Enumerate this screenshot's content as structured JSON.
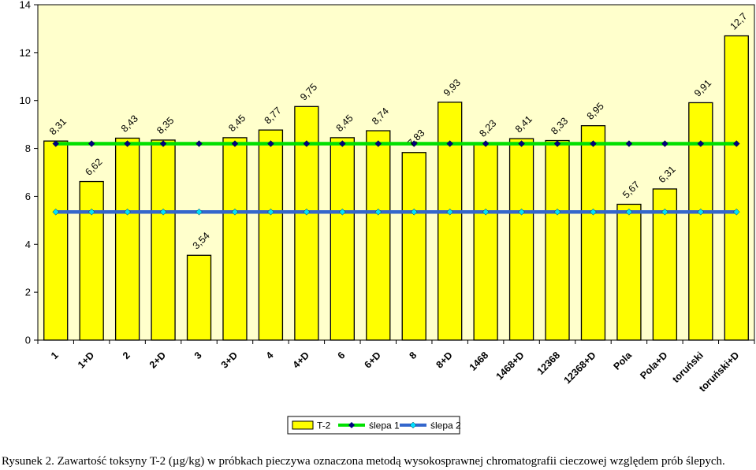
{
  "chart_data": {
    "type": "bar",
    "categories": [
      "1",
      "1+D",
      "2",
      "2+D",
      "3",
      "3+D",
      "4",
      "4+D",
      "6",
      "6+D",
      "8",
      "8+D",
      "1468",
      "1468+D",
      "12368",
      "12368+D",
      "Pola",
      "Pola+D",
      "toruński",
      "toruński+D"
    ],
    "series": [
      {
        "name": "T-2",
        "type": "bar",
        "color": "#FFFF00",
        "values": [
          8.31,
          6.62,
          8.43,
          8.35,
          3.54,
          8.45,
          8.77,
          9.75,
          8.45,
          8.74,
          7.83,
          9.93,
          8.23,
          8.41,
          8.33,
          8.95,
          5.67,
          6.31,
          9.91,
          12.7
        ],
        "labels": [
          "8,31",
          "6,62",
          "8,43",
          "8,35",
          "3,54",
          "8,45",
          "8,77",
          "9,75",
          "8,45",
          "8,74",
          "7,83",
          "9,93",
          "8,23",
          "8,41",
          "8,33",
          "8,95",
          "5,67",
          "6,31",
          "9,91",
          "12,7"
        ]
      },
      {
        "name": "ślepa 1",
        "type": "line",
        "color": "#00E000",
        "marker_color": "#000080",
        "value": 8.2
      },
      {
        "name": "ślepa 2",
        "type": "line",
        "color": "#3366CC",
        "marker_color": "#00E0FF",
        "value": 5.35
      }
    ],
    "yticks": [
      "0",
      "2",
      "4",
      "6",
      "8",
      "10",
      "12",
      "14"
    ],
    "ylim": [
      0,
      14
    ],
    "plot_background": "#FFFFCC",
    "legend_position": "bottom",
    "caption": "Rysunek 2. Zawartość toksyny T-2 (µg/kg) w próbkach pieczywa oznaczona metodą wysokosprawnej chromatografii cieczowej względem prób ślepych."
  }
}
